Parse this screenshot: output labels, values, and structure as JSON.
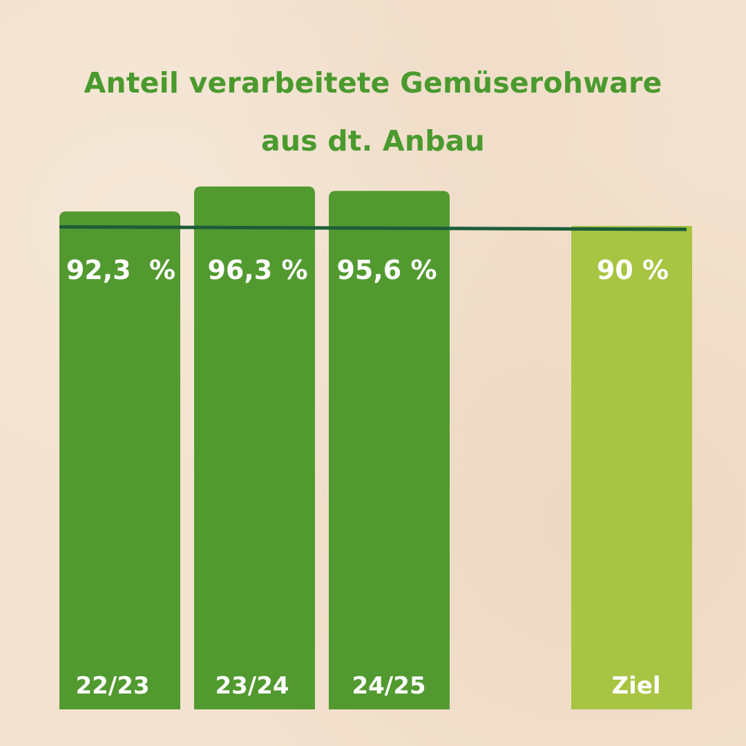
{
  "colors": {
    "background": "#f3e2cf",
    "title": "#4a9a2e",
    "bar_actual": "#529a30",
    "bar_target": "#a8c443",
    "reference_line": "#1d5e38",
    "label_text": "#ffffff"
  },
  "chart_data": {
    "type": "bar",
    "title_lines": [
      "Anteil verarbeitete Gemüserohware",
      "aus dt. Anbau"
    ],
    "xlabel": "",
    "ylabel": "",
    "grid": false,
    "categories": [
      "22/23",
      "23/24",
      "24/25",
      "Ziel"
    ],
    "values": [
      92.3,
      96.3,
      95.6,
      90
    ],
    "value_labels": [
      "92,3  %",
      "96,3 %",
      "95,6 %",
      "90 %"
    ],
    "bar_kinds": [
      "actual",
      "actual",
      "actual",
      "target"
    ],
    "reference_line": {
      "value": 90,
      "label": ""
    }
  }
}
